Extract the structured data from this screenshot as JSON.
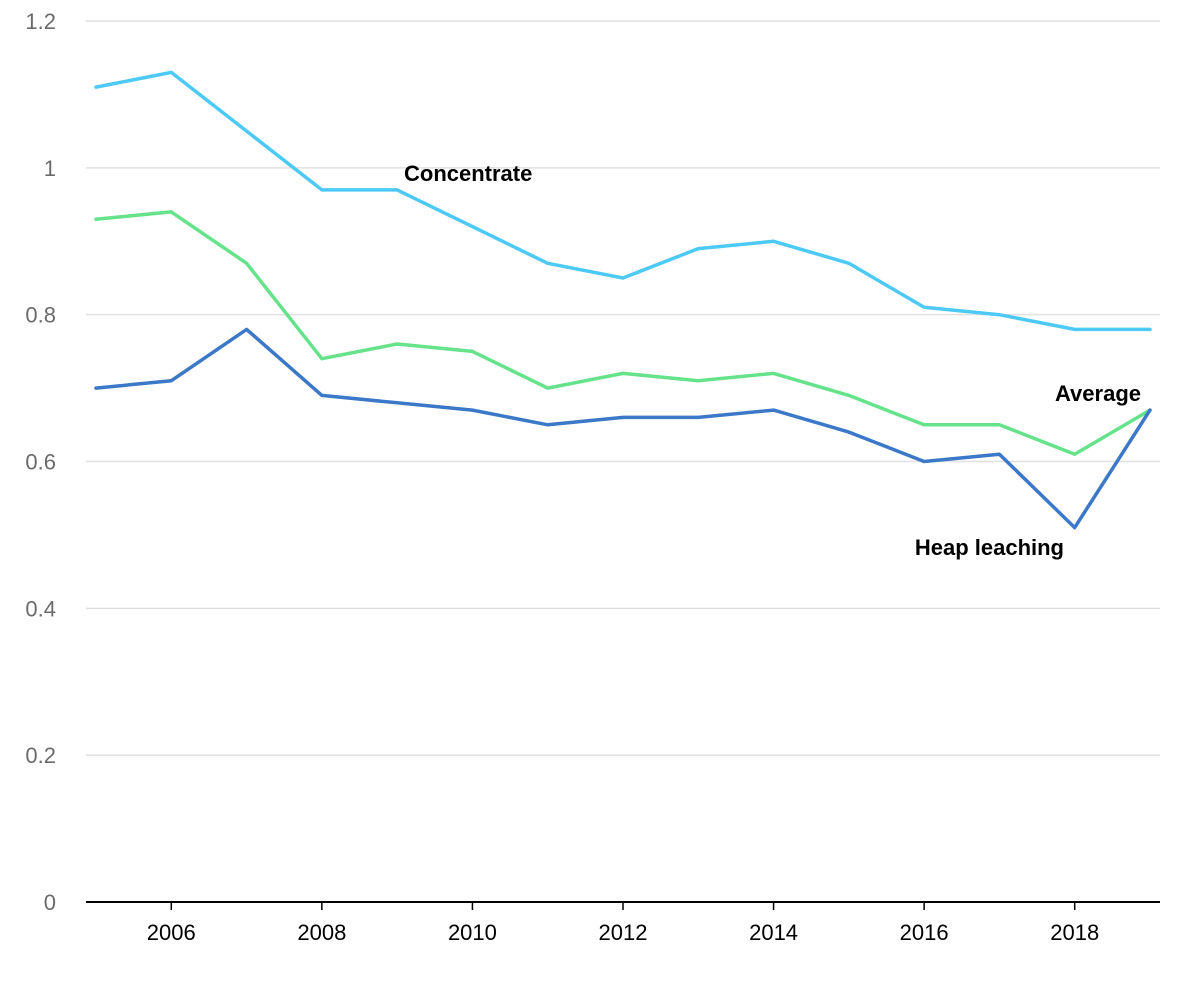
{
  "chart_data": {
    "type": "line",
    "title": "",
    "xlabel": "",
    "ylabel": "",
    "x": [
      2005,
      2006,
      2007,
      2008,
      2009,
      2010,
      2011,
      2012,
      2013,
      2014,
      2015,
      2016,
      2017,
      2018,
      2019
    ],
    "xlim": [
      2005,
      2019
    ],
    "ylim": [
      0,
      1.2
    ],
    "x_ticks": [
      2006,
      2008,
      2010,
      2012,
      2014,
      2016,
      2018
    ],
    "x_tick_labels": [
      "2006",
      "2008",
      "2010",
      "2012",
      "2014",
      "2016",
      "2018"
    ],
    "y_ticks": [
      0,
      0.2,
      0.4,
      0.6,
      0.8,
      1,
      1.2
    ],
    "y_tick_labels": [
      "0",
      "0.2",
      "0.4",
      "0.6",
      "0.8",
      "1",
      "1.2"
    ],
    "grid": true,
    "legend": "none (series labeled inline)",
    "series": [
      {
        "name": "Concentrate",
        "color": "#4dc9f6",
        "values": [
          1.11,
          1.13,
          1.05,
          0.97,
          0.97,
          0.92,
          0.87,
          0.85,
          0.89,
          0.9,
          0.87,
          0.81,
          0.8,
          0.78,
          0.78
        ]
      },
      {
        "name": "Average",
        "color": "#66e38a",
        "values": [
          0.93,
          0.94,
          0.87,
          0.74,
          0.76,
          0.75,
          0.7,
          0.72,
          0.71,
          0.72,
          0.69,
          0.65,
          0.65,
          0.61,
          0.67
        ]
      },
      {
        "name": "Heap leaching",
        "color": "#3b78c8",
        "values": [
          0.7,
          0.71,
          0.78,
          0.69,
          0.68,
          0.67,
          0.65,
          0.66,
          0.66,
          0.67,
          0.64,
          0.6,
          0.61,
          0.51,
          0.67
        ]
      }
    ]
  }
}
